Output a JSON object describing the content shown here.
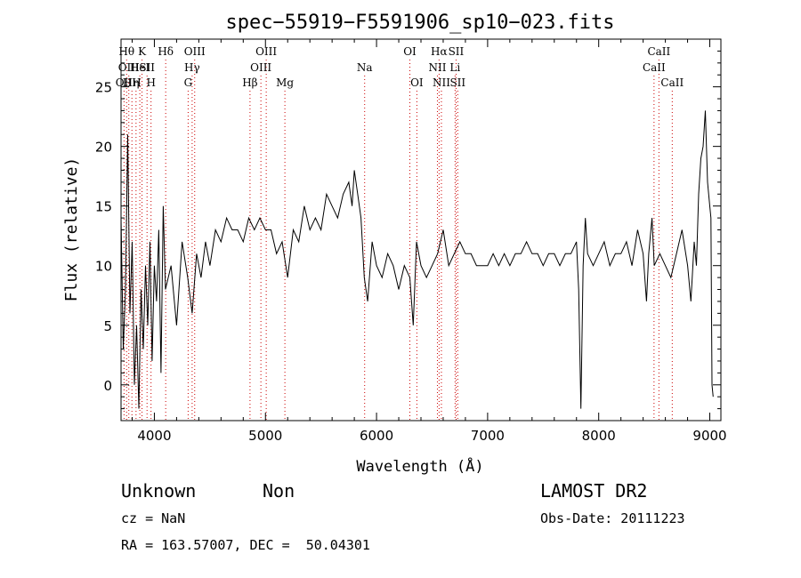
{
  "chart_data": {
    "type": "line",
    "title": "spec−55919−F5591906_sp10−023.fits",
    "xlabel": "Wavelength (Å)",
    "ylabel": "Flux (relative)",
    "xlim": [
      3700,
      9100
    ],
    "ylim": [
      -3,
      29
    ],
    "x_ticks": [
      4000,
      5000,
      6000,
      7000,
      8000,
      9000
    ],
    "y_ticks": [
      0,
      5,
      10,
      15,
      20,
      25
    ],
    "grid": false,
    "series": [
      {
        "x": [
          3700,
          3720,
          3740,
          3760,
          3780,
          3800,
          3820,
          3840,
          3860,
          3880,
          3900,
          3920,
          3940,
          3960,
          3980,
          4000,
          4020,
          4040,
          4060,
          4080,
          4100,
          4150,
          4200,
          4250,
          4300,
          4340,
          4380,
          4420,
          4460,
          4500,
          4550,
          4600,
          4650,
          4700,
          4750,
          4800,
          4850,
          4900,
          4950,
          5000,
          5050,
          5100,
          5150,
          5200,
          5250,
          5300,
          5350,
          5400,
          5450,
          5500,
          5550,
          5600,
          5650,
          5700,
          5750,
          5780,
          5800,
          5830,
          5860,
          5890,
          5920,
          5960,
          6000,
          6050,
          6100,
          6150,
          6200,
          6250,
          6300,
          6330,
          6360,
          6400,
          6450,
          6500,
          6550,
          6600,
          6650,
          6700,
          6750,
          6800,
          6850,
          6900,
          6950,
          7000,
          7050,
          7100,
          7150,
          7200,
          7250,
          7300,
          7350,
          7400,
          7450,
          7500,
          7550,
          7600,
          7650,
          7700,
          7750,
          7800,
          7820,
          7840,
          7860,
          7880,
          7900,
          7950,
          8000,
          8050,
          8100,
          8150,
          8200,
          8250,
          8300,
          8350,
          8400,
          8430,
          8450,
          8480,
          8500,
          8550,
          8600,
          8650,
          8700,
          8750,
          8800,
          8830,
          8860,
          8880,
          8900,
          8920,
          8940,
          8960,
          8980,
          9000,
          9010,
          9020,
          9030
        ],
        "y": [
          14,
          3,
          8,
          21,
          6,
          12,
          0,
          5,
          -2,
          8,
          3,
          10,
          5,
          12,
          2,
          10,
          7,
          13,
          1,
          15,
          8,
          10,
          5,
          12,
          9,
          6,
          11,
          9,
          12,
          10,
          13,
          12,
          14,
          13,
          13,
          12,
          14,
          13,
          14,
          13,
          13,
          11,
          12,
          9,
          13,
          12,
          15,
          13,
          14,
          13,
          16,
          15,
          14,
          16,
          17,
          15,
          18,
          16,
          14,
          9,
          7,
          12,
          10,
          9,
          11,
          10,
          8,
          10,
          9,
          5,
          12,
          10,
          9,
          10,
          11,
          13,
          10,
          11,
          12,
          11,
          11,
          10,
          10,
          10,
          11,
          10,
          11,
          10,
          11,
          11,
          12,
          11,
          11,
          10,
          11,
          11,
          10,
          11,
          11,
          12,
          8,
          -2,
          10,
          14,
          11,
          10,
          11,
          12,
          10,
          11,
          11,
          12,
          10,
          13,
          11,
          7,
          11,
          14,
          10,
          11,
          10,
          9,
          11,
          13,
          10,
          7,
          12,
          10,
          16,
          19,
          20,
          23,
          17,
          15,
          14,
          0,
          -1
        ]
      }
    ],
    "line_labels": [
      {
        "x": 3727,
        "row": 2,
        "text": "OII"
      },
      {
        "x": 3750,
        "row": 0,
        "text": "Hθ"
      },
      {
        "x": 3770,
        "row": 1,
        "text": "OIII"
      },
      {
        "x": 3798,
        "row": 2,
        "text": "HH"
      },
      {
        "x": 3835,
        "row": 2,
        "text": "η"
      },
      {
        "x": 3869,
        "row": 1,
        "text": "HeI"
      },
      {
        "x": 3889,
        "row": 0,
        "text": "K"
      },
      {
        "x": 3934,
        "row": 1,
        "text": "SII"
      },
      {
        "x": 3970,
        "row": 2,
        "text": "H"
      },
      {
        "x": 4102,
        "row": 0,
        "text": "Hδ"
      },
      {
        "x": 4340,
        "row": 1,
        "text": "Hγ"
      },
      {
        "x": 4363,
        "row": 0,
        "text": "OIII"
      },
      {
        "x": 4304,
        "row": 2,
        "text": "G"
      },
      {
        "x": 4861,
        "row": 2,
        "text": "Hβ"
      },
      {
        "x": 4959,
        "row": 1,
        "text": "OIII"
      },
      {
        "x": 5007,
        "row": 0,
        "text": "OIII"
      },
      {
        "x": 5175,
        "row": 2,
        "text": "Mg"
      },
      {
        "x": 5893,
        "row": 1,
        "text": "Na"
      },
      {
        "x": 6300,
        "row": 0,
        "text": "OI"
      },
      {
        "x": 6363,
        "row": 2,
        "text": "OI"
      },
      {
        "x": 6548,
        "row": 1,
        "text": "NII"
      },
      {
        "x": 6563,
        "row": 0,
        "text": "Hα"
      },
      {
        "x": 6584,
        "row": 2,
        "text": "NII"
      },
      {
        "x": 6707,
        "row": 1,
        "text": "Li"
      },
      {
        "x": 6716,
        "row": 0,
        "text": "SII"
      },
      {
        "x": 6731,
        "row": 2,
        "text": "SII"
      },
      {
        "x": 8498,
        "row": 1,
        "text": "CaII"
      },
      {
        "x": 8542,
        "row": 0,
        "text": "CaII"
      },
      {
        "x": 8662,
        "row": 2,
        "text": "CaII"
      }
    ],
    "line_color": "#000000",
    "marker_color": "#cc0000"
  },
  "info": {
    "class_label": "Unknown",
    "subclass_label": "Non",
    "survey": "LAMOST DR2",
    "redshift_line": "cz = NaN",
    "obs_date_line": "Obs-Date: 20111223",
    "coords_line": "RA = 163.57007, DEC =  50.04301"
  }
}
